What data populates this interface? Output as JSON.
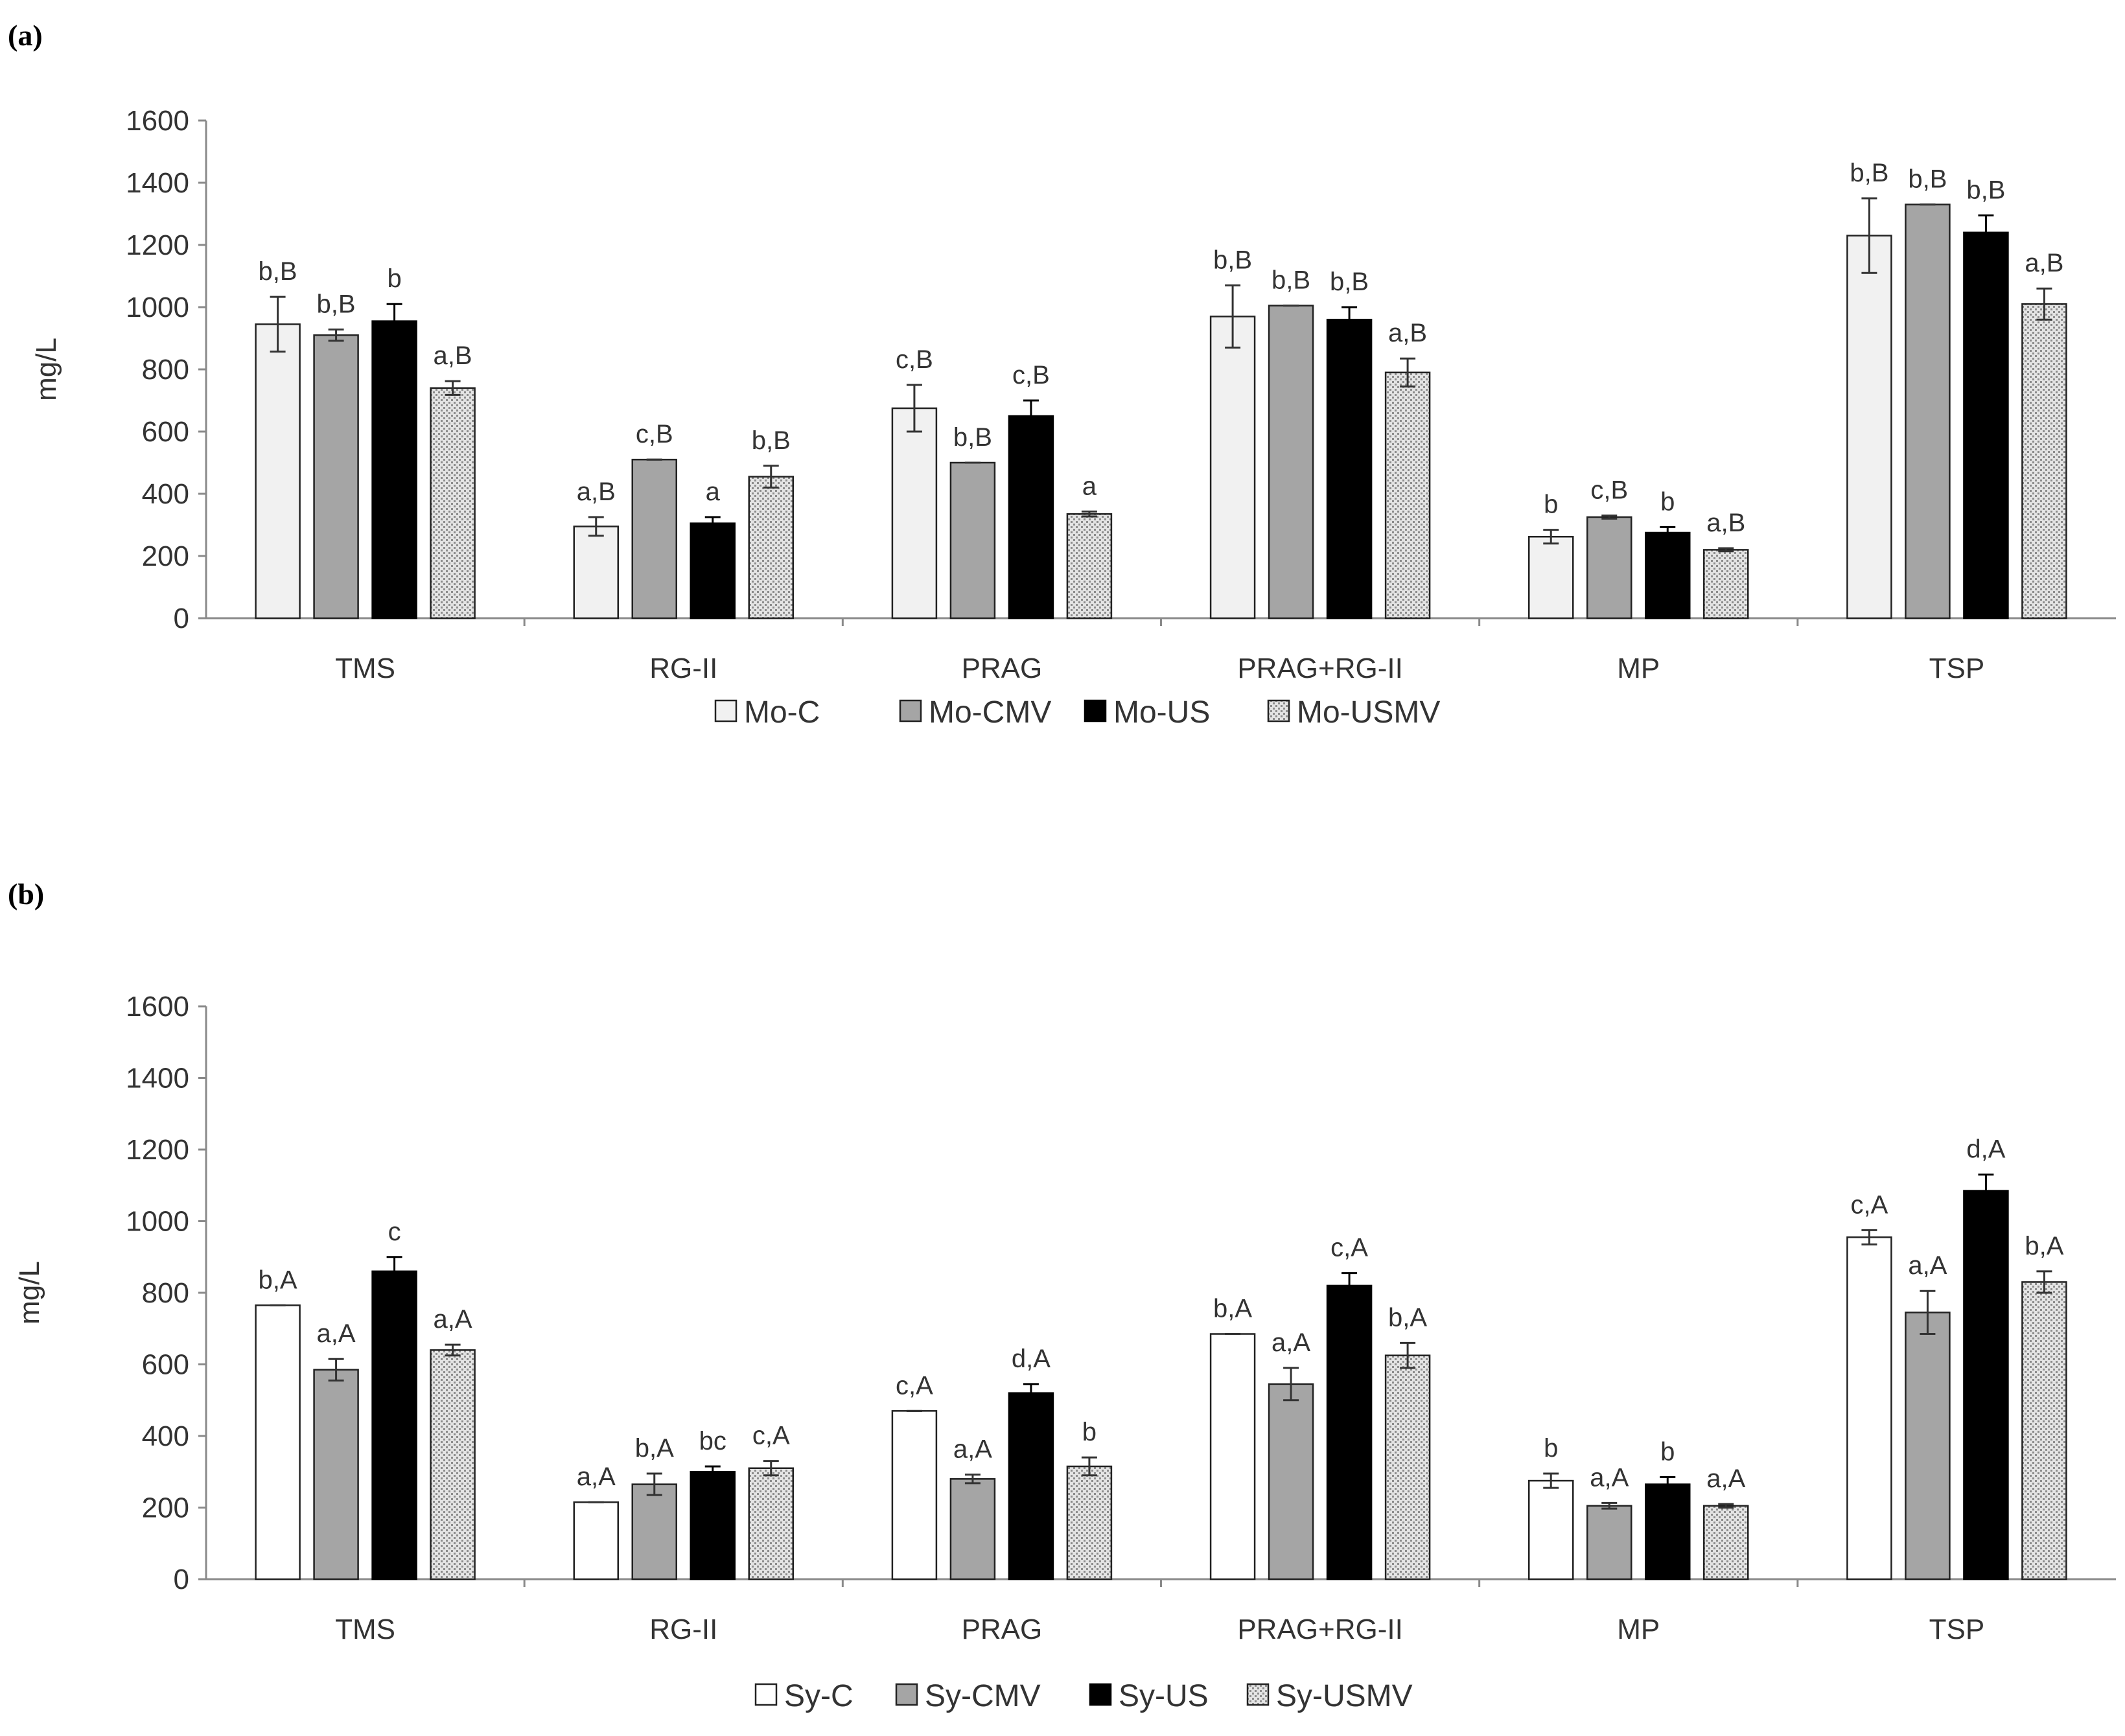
{
  "chart_data": [
    {
      "panel_label": "(a)",
      "type": "bar",
      "title": "",
      "xlabel": "",
      "ylabel": "mg/L",
      "ylim": [
        0,
        1600
      ],
      "yticks": [
        0,
        200,
        400,
        600,
        800,
        1000,
        1200,
        1400,
        1600
      ],
      "grid": false,
      "legend_position": "bottom",
      "categories": [
        "TMS",
        "RG-II",
        "PRAG",
        "PRAG+RG-II",
        "MP",
        "TSP"
      ],
      "series": [
        {
          "name": "Mo-C",
          "style": "light",
          "values": [
            945,
            295,
            675,
            970,
            262,
            1230
          ],
          "errors": [
            88,
            30,
            75,
            100,
            22,
            120
          ],
          "labels": [
            "b,B",
            "a,B",
            "c,B",
            "b,B",
            "b",
            "b,B"
          ]
        },
        {
          "name": "Mo-CMV",
          "style": "gray",
          "values": [
            910,
            510,
            500,
            1005,
            325,
            1330
          ],
          "errors": [
            18,
            0,
            0,
            0,
            5,
            0
          ],
          "labels": [
            "b,B",
            "c,B",
            "b,B",
            "b,B",
            "c,B",
            "b,B"
          ]
        },
        {
          "name": "Mo-US",
          "style": "black",
          "values": [
            955,
            305,
            650,
            960,
            275,
            1240
          ],
          "errors": [
            55,
            20,
            50,
            40,
            18,
            55
          ],
          "labels": [
            "b",
            "a",
            "c,B",
            "b,B",
            "b",
            "b,B"
          ]
        },
        {
          "name": "Mo-USMV",
          "style": "dotted",
          "values": [
            740,
            455,
            335,
            790,
            220,
            1010
          ],
          "errors": [
            22,
            35,
            8,
            45,
            5,
            50
          ],
          "labels": [
            "a,B",
            "b,B",
            "a",
            "a,B",
            "a,B",
            "a,B"
          ]
        }
      ]
    },
    {
      "panel_label": "(b)",
      "type": "bar",
      "title": "",
      "xlabel": "",
      "ylabel": "mg/L",
      "ylim": [
        0,
        1600
      ],
      "yticks": [
        0,
        200,
        400,
        600,
        800,
        1000,
        1200,
        1400,
        1600
      ],
      "grid": false,
      "legend_position": "bottom",
      "categories": [
        "TMS",
        "RG-II",
        "PRAG",
        "PRAG+RG-II",
        "MP",
        "TSP"
      ],
      "series": [
        {
          "name": "Sy-C",
          "style": "white",
          "values": [
            765,
            215,
            470,
            685,
            275,
            955
          ],
          "errors": [
            0,
            0,
            0,
            0,
            20,
            20
          ],
          "labels": [
            "b,A",
            "a,A",
            "c,A",
            "b,A",
            "b",
            "c,A"
          ]
        },
        {
          "name": "Sy-CMV",
          "style": "gray",
          "values": [
            585,
            265,
            280,
            545,
            205,
            745
          ],
          "errors": [
            30,
            30,
            12,
            45,
            8,
            60
          ],
          "labels": [
            "a,A",
            "b,A",
            "a,A",
            "a,A",
            "a,A",
            "a,A"
          ]
        },
        {
          "name": "Sy-US",
          "style": "black",
          "values": [
            860,
            300,
            520,
            820,
            265,
            1085
          ],
          "errors": [
            40,
            15,
            25,
            35,
            20,
            45
          ],
          "labels": [
            "c",
            "bc",
            "d,A",
            "c,A",
            "b",
            "d,A"
          ]
        },
        {
          "name": "Sy-USMV",
          "style": "dotted",
          "values": [
            640,
            310,
            315,
            625,
            205,
            830
          ],
          "errors": [
            15,
            20,
            25,
            35,
            5,
            30
          ],
          "labels": [
            "a,A",
            "c,A",
            "b",
            "b,A",
            "a,A",
            "b,A"
          ]
        }
      ]
    }
  ]
}
